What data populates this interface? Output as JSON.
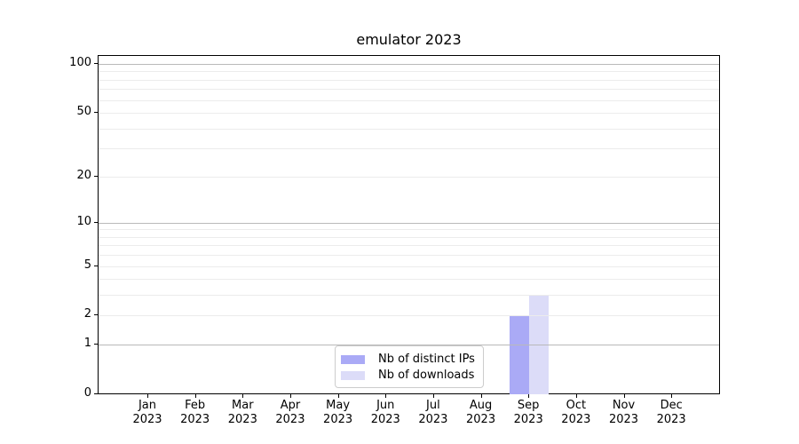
{
  "chart": {
    "title": "emulator 2023"
  },
  "chart_data": {
    "type": "bar",
    "title": "emulator 2023",
    "categories": [
      "Jan 2023",
      "Feb 2023",
      "Mar 2023",
      "Apr 2023",
      "May 2023",
      "Jun 2023",
      "Jul 2023",
      "Aug 2023",
      "Sep 2023",
      "Oct 2023",
      "Nov 2023",
      "Dec 2023"
    ],
    "series": [
      {
        "name": "Nb of distinct IPs",
        "color": "#aaaaf6",
        "values": [
          0,
          0,
          0,
          0,
          0,
          0,
          0,
          0,
          2,
          0,
          0,
          0
        ]
      },
      {
        "name": "Nb of downloads",
        "color": "#dcdcf8",
        "values": [
          0,
          0,
          0,
          0,
          0,
          0,
          0,
          0,
          3,
          0,
          0,
          0
        ]
      }
    ],
    "xlabel": "",
    "ylabel": "",
    "yscale": "log1p",
    "ylim": [
      0,
      112
    ],
    "yticks": [
      0,
      1,
      2,
      5,
      10,
      20,
      50,
      100
    ],
    "grid": {
      "major_values": [
        1,
        10,
        100
      ],
      "minor_values": [
        2,
        3,
        4,
        5,
        6,
        7,
        8,
        9,
        20,
        30,
        40,
        50,
        60,
        70,
        80,
        90
      ],
      "major_color": "#b9b9b9",
      "minor_color": "#ececec"
    },
    "legend_position": "lower center",
    "axis_color": "#000000",
    "background_color": "#ffffff"
  }
}
